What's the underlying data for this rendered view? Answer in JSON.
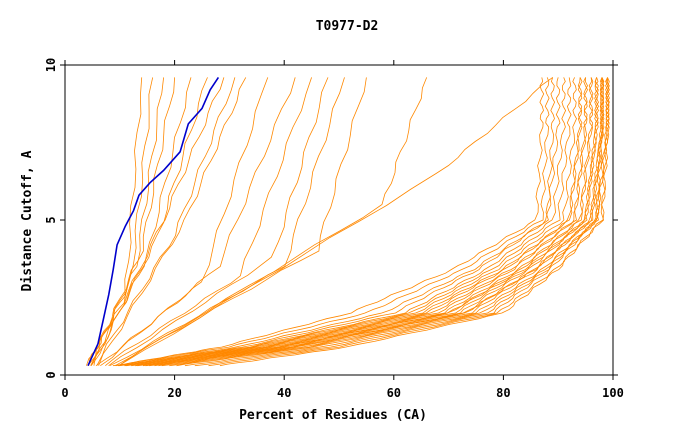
{
  "chart_data": {
    "type": "line",
    "title": "T0977-D2",
    "xlabel": "Percent of Residues (CA)",
    "ylabel": "Distance Cutoff, A",
    "xlim": [
      0,
      100
    ],
    "ylim": [
      0,
      10
    ],
    "x_ticks": [
      0,
      20,
      40,
      60,
      80,
      100
    ],
    "x_tick_labels": [
      "0",
      "20",
      "40",
      "60",
      "80",
      "100"
    ],
    "y_ticks": [
      0,
      5,
      10
    ],
    "y_tick_labels": [
      "0",
      "5",
      "10"
    ],
    "grid": false,
    "legend": "none",
    "colors": {
      "highlight": "#0000cc",
      "others": "#ff8800",
      "axes": "#000000"
    },
    "highlight_series": {
      "x": [
        4.2,
        6.0,
        7.0,
        8.0,
        8.8,
        9.5,
        11.0,
        12.5,
        13.5,
        15.5,
        18.0,
        21.0,
        22.5,
        25.0,
        26.5,
        28.0
      ],
      "y": [
        0.3,
        1.0,
        1.8,
        2.6,
        3.4,
        4.2,
        4.8,
        5.3,
        5.8,
        6.2,
        6.6,
        7.2,
        8.1,
        8.6,
        9.2,
        9.6
      ]
    },
    "series_groups": [
      {
        "shape": "steep",
        "curves": [
          [
            4.0,
            0.3,
            11,
            2.5,
            14,
            9.6
          ],
          [
            4.0,
            0.3,
            12,
            3.0,
            16,
            9.6
          ],
          [
            4.5,
            0.3,
            13,
            3.5,
            18,
            9.6
          ],
          [
            4.5,
            0.3,
            14,
            4.0,
            20,
            9.6
          ],
          [
            5.0,
            0.3,
            15,
            3.8,
            23,
            9.6
          ],
          [
            5.0,
            0.3,
            17,
            4.5,
            26,
            9.6
          ],
          [
            5.0,
            0.3,
            18,
            5.0,
            29,
            9.6
          ],
          [
            5.5,
            0.3,
            20,
            4.5,
            31,
            9.6
          ],
          [
            6.0,
            0.3,
            22,
            5.0,
            33,
            9.6
          ]
        ]
      },
      {
        "shape": "moderate",
        "curves": [
          [
            6.0,
            0.3,
            25,
            3.0,
            37,
            9.6
          ],
          [
            6.5,
            0.3,
            28,
            3.5,
            42,
            9.6
          ],
          [
            7.0,
            0.3,
            32,
            3.2,
            45,
            9.6
          ],
          [
            8.0,
            0.3,
            38,
            3.8,
            48,
            9.6
          ],
          [
            8.5,
            0.3,
            40,
            3.5,
            51,
            9.6
          ],
          [
            9.0,
            0.3,
            46,
            4.0,
            55,
            9.6
          ],
          [
            9.5,
            0.3,
            58,
            5.5,
            66,
            9.6
          ],
          [
            10.0,
            0.3,
            68,
            6.5,
            89,
            9.6
          ]
        ]
      },
      {
        "shape": "knee",
        "knee_y": 2.0,
        "curves": [
          [
            9.0,
            0.3,
            52,
            86,
            87,
            9.6
          ],
          [
            9.0,
            0.3,
            55,
            87,
            88,
            9.6
          ],
          [
            9.5,
            0.3,
            58,
            88,
            89,
            9.6
          ],
          [
            10.0,
            0.3,
            60,
            88,
            90,
            9.6
          ],
          [
            10.0,
            0.3,
            62,
            89,
            91,
            9.6
          ],
          [
            10.5,
            0.3,
            63,
            90,
            92,
            9.6
          ],
          [
            11.0,
            0.3,
            64,
            91,
            93,
            9.6
          ],
          [
            11.5,
            0.3,
            65,
            92,
            94,
            9.6
          ],
          [
            12.0,
            0.3,
            66,
            92,
            94,
            9.6
          ],
          [
            12.5,
            0.3,
            67,
            93,
            95,
            9.6
          ],
          [
            13.0,
            0.3,
            68,
            93,
            95,
            9.6
          ],
          [
            13.5,
            0.3,
            69,
            94,
            96,
            9.6
          ],
          [
            14.0,
            0.3,
            70,
            94,
            96,
            9.6
          ],
          [
            14.5,
            0.3,
            70,
            95,
            97,
            9.6
          ],
          [
            15.0,
            0.3,
            71,
            95,
            97,
            9.6
          ],
          [
            15.5,
            0.3,
            72,
            95,
            97,
            9.6
          ],
          [
            16.0,
            0.3,
            73,
            96,
            98,
            9.6
          ],
          [
            17.0,
            0.3,
            73,
            96,
            98,
            9.6
          ],
          [
            18.0,
            0.3,
            74,
            96,
            98,
            9.6
          ],
          [
            19.0,
            0.3,
            75,
            97,
            98,
            9.6
          ],
          [
            20.0,
            0.3,
            76,
            97,
            98,
            9.6
          ],
          [
            22.0,
            0.3,
            77,
            97,
            99,
            9.6
          ],
          [
            24.0,
            0.3,
            78,
            97,
            99,
            9.6
          ],
          [
            26.0,
            0.3,
            79,
            98,
            99,
            9.6
          ],
          [
            28.0,
            0.3,
            80,
            98,
            99,
            9.6
          ]
        ]
      }
    ]
  }
}
